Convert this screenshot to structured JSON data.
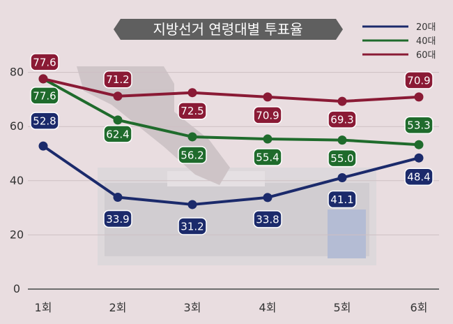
{
  "chart_data": {
    "type": "line",
    "title": "지방선거 연령대별 투표율",
    "categories": [
      "1회",
      "2회",
      "3회",
      "4회",
      "5회",
      "6회"
    ],
    "ylim": [
      0,
      80
    ],
    "yticks": [
      0,
      20,
      40,
      60,
      80
    ],
    "grid": true,
    "legend_position": "top-right",
    "series": [
      {
        "name": "20대",
        "color": "#1b2a6b",
        "values": [
          52.8,
          33.9,
          31.2,
          33.8,
          41.1,
          48.4
        ]
      },
      {
        "name": "40대",
        "color": "#1f6b2c",
        "values": [
          77.6,
          62.4,
          56.2,
          55.4,
          55.0,
          53.3
        ]
      },
      {
        "name": "60대",
        "color": "#8a1a35",
        "values": [
          77.6,
          71.2,
          72.5,
          70.9,
          69.3,
          70.9
        ]
      }
    ]
  }
}
